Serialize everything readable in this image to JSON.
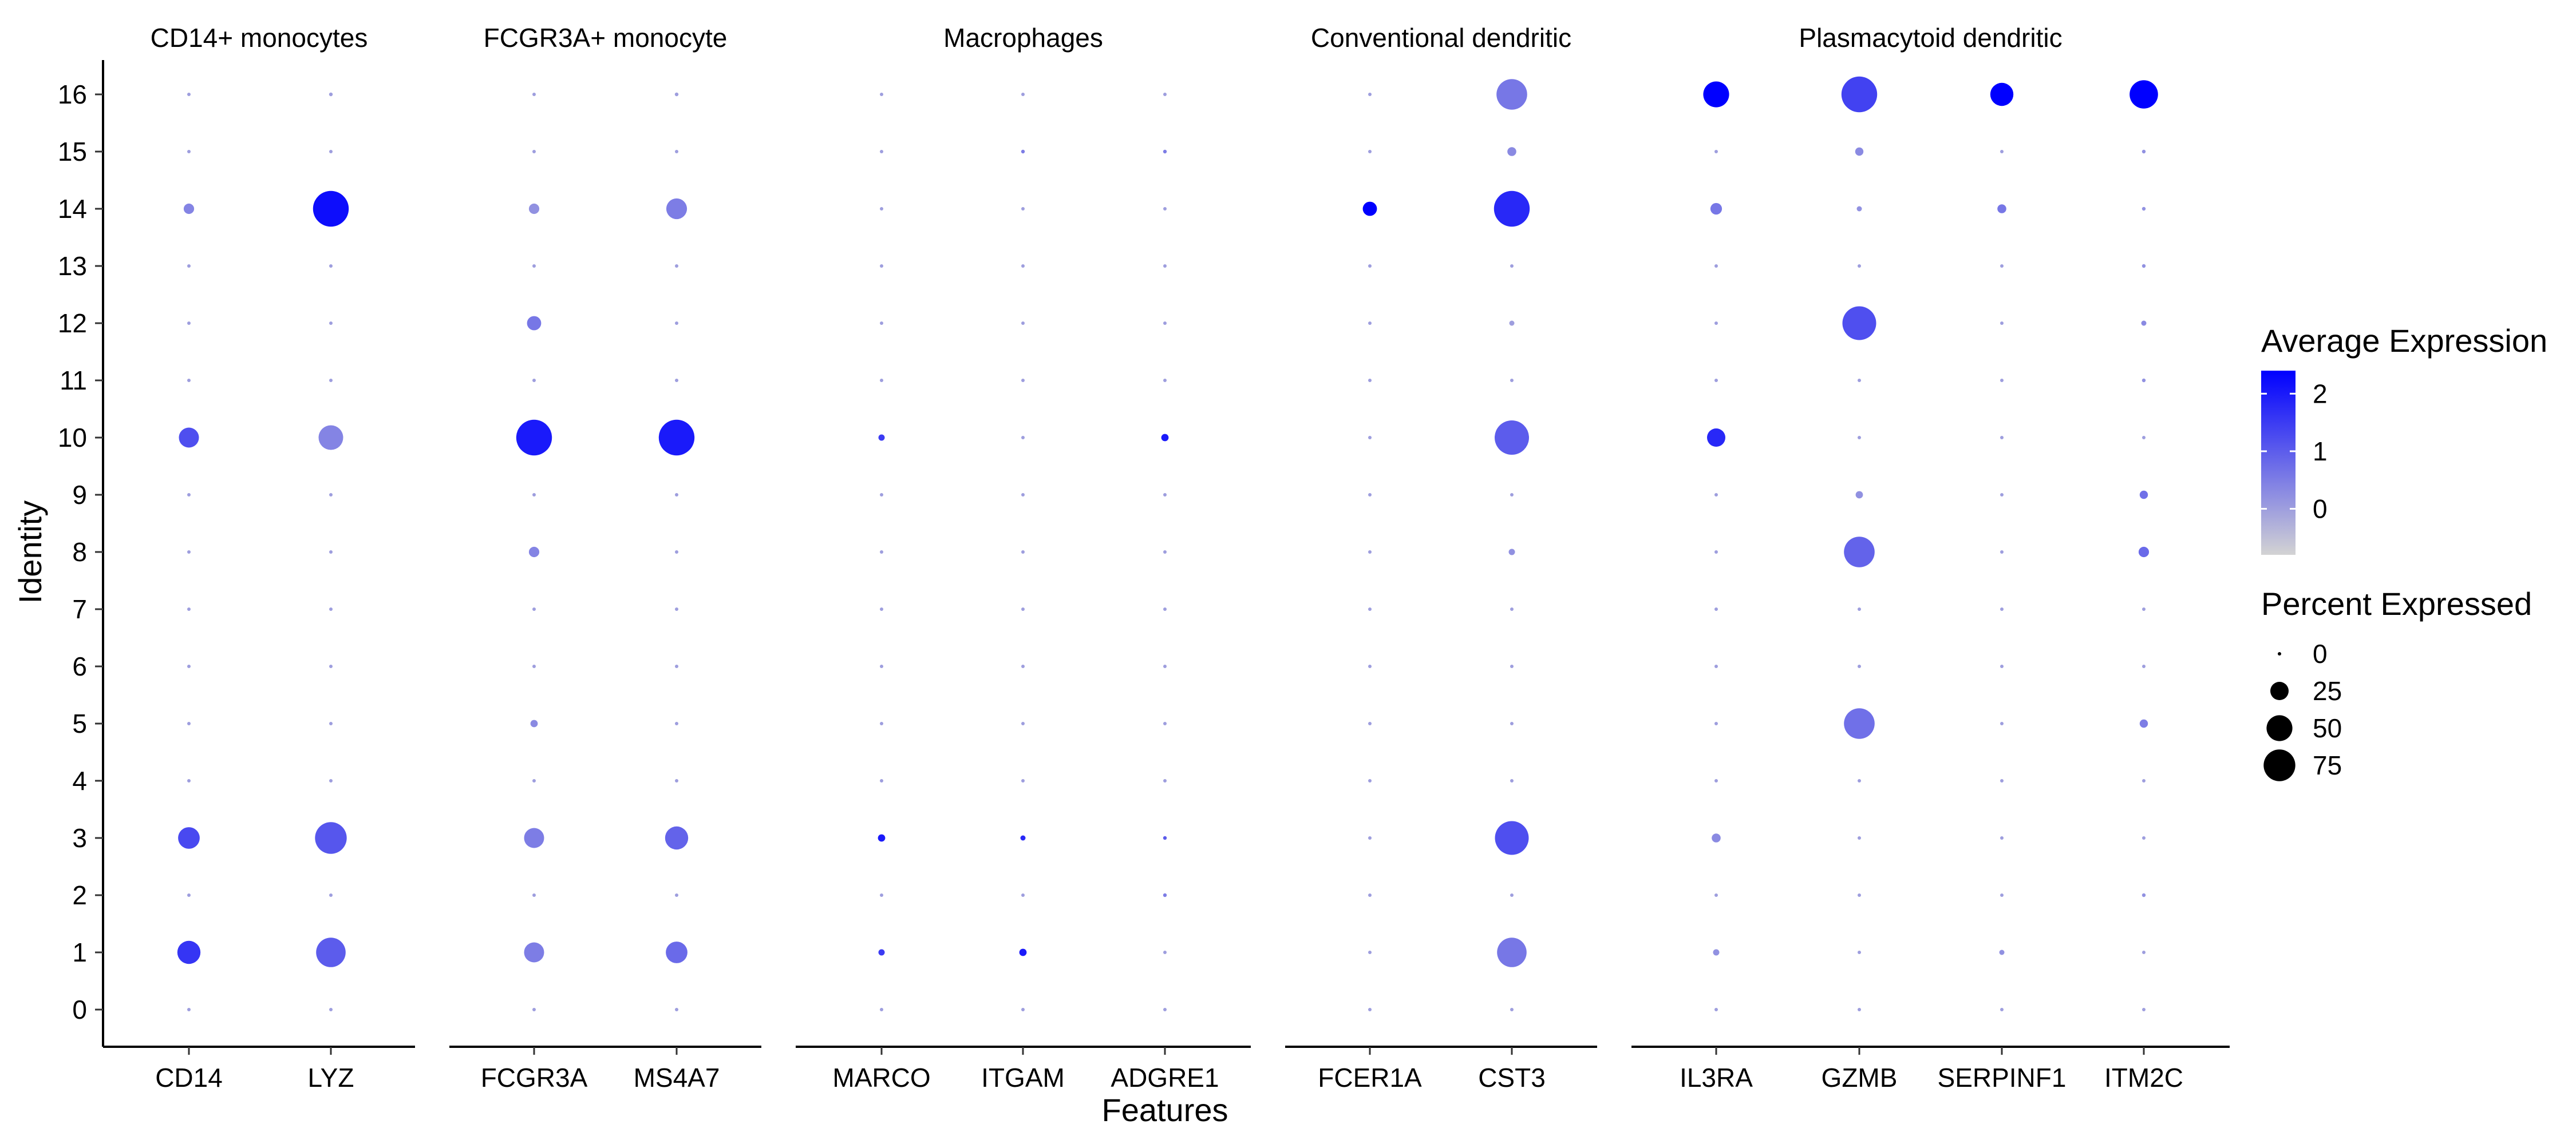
{
  "chart_data": {
    "type": "dot",
    "xlabel": "Features",
    "ylabel": "Identity",
    "identities": [
      "0",
      "1",
      "2",
      "3",
      "4",
      "5",
      "6",
      "7",
      "8",
      "9",
      "10",
      "11",
      "12",
      "13",
      "14",
      "15",
      "16"
    ],
    "groups": [
      {
        "name": "CD14+ monocytes",
        "features": [
          "CD14",
          "LYZ"
        ]
      },
      {
        "name": "FCGR3A+ monocyte",
        "features": [
          "FCGR3A",
          "MS4A7"
        ]
      },
      {
        "name": "Macrophages",
        "features": [
          "MARCO",
          "ITGAM",
          "ADGRE1"
        ]
      },
      {
        "name": "Conventional dendritic",
        "features": [
          "FCER1A",
          "CST3"
        ]
      },
      {
        "name": "Plasmacytoid dendritic",
        "features": [
          "IL3RA",
          "GZMB",
          "SERPINF1",
          "ITM2C"
        ]
      }
    ],
    "series": [
      {
        "feature": "CD14",
        "pct": [
          0,
          40,
          0,
          35,
          0,
          0,
          0,
          0,
          0,
          0,
          30,
          0,
          0,
          0,
          8,
          0,
          0
        ],
        "avg": [
          0,
          1.6,
          0,
          1.3,
          0,
          0,
          0,
          0,
          0,
          0,
          1.2,
          0,
          0,
          0,
          0.4,
          0,
          0
        ]
      },
      {
        "feature": "LYZ",
        "pct": [
          0,
          65,
          0,
          75,
          0,
          0,
          0,
          0,
          0,
          0,
          45,
          0,
          0,
          0,
          95,
          0,
          1
        ],
        "avg": [
          0,
          1.0,
          0,
          1.1,
          0,
          0,
          0,
          0,
          0,
          0,
          0.4,
          0,
          0,
          0,
          2.2,
          0,
          0
        ]
      },
      {
        "feature": "FCGR3A",
        "pct": [
          0,
          30,
          0,
          30,
          0,
          4,
          0,
          0,
          8,
          0,
          95,
          0,
          15,
          0,
          8,
          0,
          0
        ],
        "avg": [
          0,
          0.5,
          0,
          0.5,
          0,
          0.3,
          0,
          0,
          0.4,
          0,
          2.0,
          0,
          0.6,
          0,
          0.2,
          0,
          0
        ]
      },
      {
        "feature": "MS4A7",
        "pct": [
          0,
          35,
          0,
          40,
          0,
          0,
          0,
          0,
          0,
          0,
          95,
          0,
          0,
          0,
          32,
          0,
          1
        ],
        "avg": [
          0,
          0.8,
          0,
          0.9,
          0,
          0,
          0,
          0,
          0,
          0,
          2.0,
          0,
          0,
          0,
          0.5,
          0,
          0
        ]
      },
      {
        "feature": "MARCO",
        "pct": [
          0,
          3,
          0,
          4,
          0,
          0,
          0,
          0,
          0,
          0,
          3,
          0,
          0,
          0,
          0,
          0,
          0
        ],
        "avg": [
          0,
          1.5,
          0,
          2.0,
          0,
          0,
          0,
          0,
          0,
          0,
          1.5,
          0,
          0,
          0,
          0,
          0,
          0
        ]
      },
      {
        "feature": "ITGAM",
        "pct": [
          0,
          4,
          0,
          2,
          0,
          0,
          0,
          0,
          0,
          0,
          0,
          0,
          0,
          0,
          0,
          1,
          0
        ],
        "avg": [
          0,
          2.0,
          0,
          1.8,
          0,
          0,
          0,
          0,
          0,
          0,
          0,
          0,
          0,
          0,
          0,
          0.5,
          0
        ]
      },
      {
        "feature": "ADGRE1",
        "pct": [
          0,
          0,
          1,
          1,
          0,
          0,
          0,
          0,
          0,
          0,
          4,
          0,
          0,
          0,
          0,
          1,
          0
        ],
        "avg": [
          0,
          0,
          0.5,
          1.0,
          0,
          0,
          0,
          0,
          0,
          0,
          2.0,
          0,
          0,
          0,
          0,
          0.5,
          0
        ]
      },
      {
        "feature": "FCER1A",
        "pct": [
          0,
          0,
          0,
          0,
          0,
          0,
          0,
          0,
          0,
          0,
          0,
          0,
          0,
          0,
          15,
          0,
          0
        ],
        "avg": [
          0,
          0,
          0,
          0,
          0,
          0,
          0,
          0,
          0,
          0,
          0,
          0,
          0,
          0,
          2.4,
          0,
          0
        ]
      },
      {
        "feature": "CST3",
        "pct": [
          0,
          65,
          0,
          85,
          0,
          0,
          0,
          0,
          3,
          0,
          88,
          0,
          2,
          0,
          95,
          6,
          70
        ],
        "avg": [
          0,
          0.6,
          0,
          1.2,
          0,
          0,
          0,
          0,
          0.2,
          0,
          1.0,
          0,
          0,
          0,
          1.8,
          0.3,
          0.6
        ]
      },
      {
        "feature": "IL3RA",
        "pct": [
          0,
          3,
          0,
          6,
          0,
          0,
          0,
          0,
          0,
          0,
          25,
          0,
          0,
          0,
          10,
          0,
          50
        ],
        "avg": [
          0,
          0.2,
          0,
          0.3,
          0,
          0,
          0,
          0,
          0,
          0,
          1.8,
          0,
          0,
          0,
          0.6,
          0,
          2.4
        ]
      },
      {
        "feature": "GZMB",
        "pct": [
          0,
          0,
          0,
          0,
          0,
          70,
          0,
          0,
          70,
          4,
          0,
          0,
          85,
          0,
          2,
          5,
          95
        ],
        "avg": [
          0,
          0,
          0,
          0,
          0,
          0.7,
          0,
          0,
          0.9,
          0.2,
          0,
          0,
          1.2,
          0,
          0.2,
          0.3,
          1.4
        ]
      },
      {
        "feature": "SERPINF1",
        "pct": [
          0,
          2,
          0,
          0,
          0,
          0,
          0,
          0,
          0,
          0,
          0,
          0,
          0,
          0,
          6,
          0,
          40
        ],
        "avg": [
          0,
          0.2,
          0,
          0,
          0,
          0,
          0,
          0,
          0,
          0,
          0,
          0,
          0,
          0,
          0.6,
          0,
          2.4
        ]
      },
      {
        "feature": "ITM2C",
        "pct": [
          0,
          0,
          1,
          0,
          0,
          5,
          0,
          0,
          8,
          5,
          0,
          1,
          2,
          1,
          1,
          1,
          60
        ],
        "avg": [
          0,
          0,
          0.2,
          0,
          0,
          0.5,
          0,
          0,
          0.8,
          0.7,
          0,
          0.2,
          0.3,
          0.2,
          0.2,
          0.2,
          2.4
        ]
      }
    ],
    "color_scale": {
      "low": "#d3d3d3",
      "high": "#0000ff",
      "min": -0.8,
      "max": 2.4
    },
    "legend": {
      "color_title": "Average Expression",
      "color_ticks": [
        "2",
        "1",
        "0"
      ],
      "color_tick_values": [
        2,
        1,
        0
      ],
      "size_title": "Percent Expressed",
      "size_ticks": [
        "0",
        "25",
        "50",
        "75"
      ],
      "size_tick_values": [
        0,
        25,
        50,
        75
      ],
      "placement": "right"
    }
  }
}
